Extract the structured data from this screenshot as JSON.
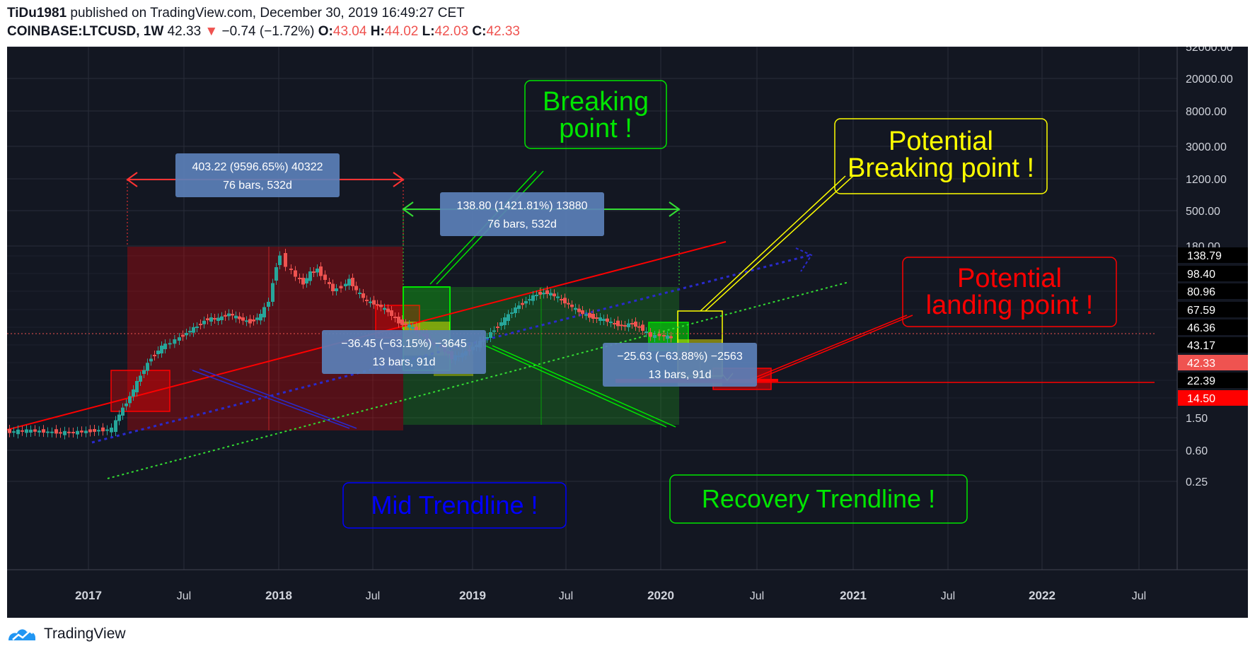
{
  "header": {
    "author": "TiDu1981",
    "published_text": "published on TradingView.com, December 30, 2019 16:49:27 CET",
    "symbol": "COINBASE:LTCUSD, 1W",
    "last": "42.33",
    "change": "−0.74 (−1.72%)",
    "o_label": "O:",
    "o_value": "43.04",
    "h_label": "H:",
    "h_value": "44.02",
    "l_label": "L:",
    "l_value": "42.03",
    "c_label": "C:",
    "c_value": "42.33"
  },
  "footer": {
    "brand": "TradingView",
    "icon": "tradingview-logo-icon"
  },
  "colors": {
    "background": "#131722",
    "grid": "#2a2e39",
    "up": "#26a69a",
    "down": "#ef5350",
    "label_blue": "#5b80b8",
    "green_annot": "#00e600",
    "yellow_annot": "#ffff00",
    "red_annot": "#ff0000",
    "blue_annot": "#0000ff"
  },
  "chart_data": {
    "type": "candlestick",
    "scale": "log",
    "y_ticks": [
      "52000.00",
      "20000.00",
      "8000.00",
      "3000.00",
      "1200.00",
      "500.00",
      "180.00",
      "1.50",
      "0.60",
      "0.25"
    ],
    "price_levels": [
      {
        "label": "138.79",
        "style": "dark"
      },
      {
        "label": "98.40",
        "style": "dark"
      },
      {
        "label": "80.96",
        "style": "dark"
      },
      {
        "label": "67.59",
        "style": "dark"
      },
      {
        "label": "46.36",
        "style": "dark"
      },
      {
        "label": "43.17",
        "style": "dark"
      },
      {
        "label": "42.33",
        "style": "last"
      },
      {
        "label": "22.39",
        "style": "dark"
      },
      {
        "label": "14.50",
        "style": "red"
      }
    ],
    "x_ticks": [
      "2017",
      "Jul",
      "2018",
      "Jul",
      "2019",
      "Jul",
      "2020",
      "Jul",
      "2021",
      "Jul",
      "2022",
      "Jul"
    ],
    "measurements": [
      {
        "line1": "403.22 (9596.65%) 40322",
        "line2": "76 bars, 532d"
      },
      {
        "line1": "138.80 (1421.81%) 13880",
        "line2": "76 bars, 532d"
      },
      {
        "line1": "−36.45 (−63.15%) −3645",
        "line2": "13 bars, 91d"
      },
      {
        "line1": "−25.63 (−63.88%) −2563",
        "line2": "13 bars, 91d"
      }
    ],
    "annotations": [
      {
        "lines": [
          "Breaking",
          "point !"
        ],
        "color": "#00e600"
      },
      {
        "lines": [
          "Potential",
          "Breaking point !"
        ],
        "color": "#ffff00"
      },
      {
        "lines": [
          "Potential",
          "landing point !"
        ],
        "color": "#ff0000"
      },
      {
        "lines": [
          "Mid Trendline !"
        ],
        "color": "#0000ff"
      },
      {
        "lines": [
          "Recovery Trendline !"
        ],
        "color": "#00e600"
      }
    ]
  }
}
